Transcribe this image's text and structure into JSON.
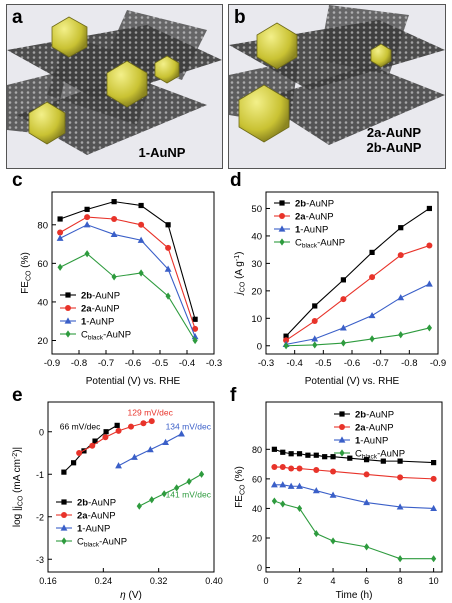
{
  "panels": {
    "a": {
      "letter": "a",
      "caption": "1-AuNP"
    },
    "b": {
      "letter": "b",
      "caption_line1": "2a-AuNP",
      "caption_line2": "2b-AuNP"
    }
  },
  "colors": {
    "black": "#000000",
    "red": "#e8332a",
    "blue": "#3a5fc8",
    "green": "#2e9b3e",
    "gold": "#d6d23a",
    "sheet": "#3a3a3a"
  },
  "chart_data": [
    {
      "panel": "c",
      "type": "line",
      "xlabel": "Potential (V) vs. RHE",
      "ylabel_main": "FE",
      "ylabel_sub": "CO",
      "ylabel_unit": " (%)",
      "x_ticks": [
        "-0.9",
        "-0.8",
        "-0.7",
        "-0.6",
        "-0.5",
        "-0.4",
        "-0.3"
      ],
      "y_ticks": [
        "20",
        "40",
        "60",
        "80"
      ],
      "xlim": [
        -0.9,
        -0.3
      ],
      "ylim": [
        13,
        97
      ],
      "x_reversed": false,
      "x": [
        -0.87,
        -0.77,
        -0.67,
        -0.57,
        -0.47,
        -0.37
      ],
      "legend_placement": "bottom-left",
      "series": [
        {
          "name_bold": "2b",
          "name_rest": "-AuNP",
          "color": "#000000",
          "marker": "square",
          "values": [
            83,
            88,
            92,
            90,
            80,
            31
          ]
        },
        {
          "name_bold": "2a",
          "name_rest": "-AuNP",
          "color": "#e8332a",
          "marker": "circle",
          "values": [
            76,
            84,
            83,
            80,
            68,
            26
          ]
        },
        {
          "name_bold": "1",
          "name_rest": "-AuNP",
          "color": "#3a5fc8",
          "marker": "triangle",
          "values": [
            73,
            80,
            75,
            72,
            57,
            22
          ]
        },
        {
          "name_bold": "",
          "name_main": "C",
          "name_sub": "black",
          "name_rest": "-AuNP",
          "color": "#2e9b3e",
          "marker": "diamond",
          "values": [
            58,
            65,
            53,
            55,
            43,
            20
          ]
        }
      ]
    },
    {
      "panel": "d",
      "type": "line",
      "xlabel": "Potential (V) vs. RHE",
      "ylabel_main": "j",
      "ylabel_sub": "CO",
      "ylabel_unit": " (A g",
      "ylabel_sup": "-1",
      "ylabel_end": ")",
      "x_ticks": [
        "-0.3",
        "-0.4",
        "-0.5",
        "-0.6",
        "-0.7",
        "-0.8",
        "-0.9"
      ],
      "y_ticks": [
        "0",
        "10",
        "20",
        "30",
        "40",
        "50"
      ],
      "xlim": [
        -0.3,
        -0.9
      ],
      "ylim": [
        -3,
        56
      ],
      "x_reversed": true,
      "x": [
        -0.37,
        -0.47,
        -0.57,
        -0.67,
        -0.77,
        -0.87
      ],
      "legend_placement": "top-left",
      "series": [
        {
          "name_bold": "2b",
          "name_rest": "-AuNP",
          "color": "#000000",
          "marker": "square",
          "values": [
            3.5,
            14.5,
            24,
            34,
            43,
            50
          ]
        },
        {
          "name_bold": "2a",
          "name_rest": "-AuNP",
          "color": "#e8332a",
          "marker": "circle",
          "values": [
            2,
            9,
            17,
            25,
            33,
            36.5
          ]
        },
        {
          "name_bold": "1",
          "name_rest": "-AuNP",
          "color": "#3a5fc8",
          "marker": "triangle",
          "values": [
            0.5,
            2.5,
            6.5,
            11,
            17.5,
            22.5
          ]
        },
        {
          "name_bold": "",
          "name_main": "C",
          "name_sub": "black",
          "name_rest": "-AuNP",
          "color": "#2e9b3e",
          "marker": "diamond",
          "values": [
            0,
            0.3,
            1,
            2.5,
            4,
            6.5
          ]
        }
      ]
    },
    {
      "panel": "e",
      "type": "line",
      "xlabel_main": "η",
      "xlabel_unit": " (V)",
      "ylabel_main": "log |j",
      "ylabel_sub": "CO",
      "ylabel_unit": " (mA cm",
      "ylabel_sup": "-2",
      "ylabel_end": ")|",
      "x_ticks": [
        "0.16",
        "0.24",
        "0.32",
        "0.40"
      ],
      "y_ticks": [
        "-3",
        "-2",
        "-1",
        "0"
      ],
      "xlim": [
        0.16,
        0.4
      ],
      "ylim": [
        -3.3,
        0.7
      ],
      "x_reversed": false,
      "legend_placement": "bottom-left",
      "annotations": [
        {
          "text": "66 mV/dec",
          "color": "#000000",
          "x": 0.177,
          "y": 0.05
        },
        {
          "text": "129 mV/dec",
          "color": "#e8332a",
          "x": 0.275,
          "y": 0.38
        },
        {
          "text": "134 mV/dec",
          "color": "#3a5fc8",
          "x": 0.33,
          "y": 0.05
        },
        {
          "text": "141 mV/dec",
          "color": "#2e9b3e",
          "x": 0.33,
          "y": -1.55
        }
      ],
      "series": [
        {
          "name_bold": "2b",
          "name_rest": "-AuNP",
          "color": "#000000",
          "marker": "square",
          "x": [
            0.183,
            0.197,
            0.212,
            0.228,
            0.244,
            0.26
          ],
          "values": [
            -0.95,
            -0.73,
            -0.45,
            -0.22,
            0.0,
            0.15
          ]
        },
        {
          "name_bold": "2a",
          "name_rest": "-AuNP",
          "color": "#e8332a",
          "marker": "circle",
          "x": [
            0.205,
            0.224,
            0.243,
            0.262,
            0.28,
            0.298,
            0.31
          ],
          "values": [
            -0.5,
            -0.33,
            -0.13,
            0.02,
            0.12,
            0.2,
            0.25
          ]
        },
        {
          "name_bold": "1",
          "name_rest": "-AuNP",
          "color": "#3a5fc8",
          "marker": "triangle",
          "x": [
            0.262,
            0.285,
            0.308,
            0.33,
            0.353
          ],
          "values": [
            -0.8,
            -0.6,
            -0.42,
            -0.25,
            -0.05
          ]
        },
        {
          "name_bold": "",
          "name_main": "C",
          "name_sub": "black",
          "name_rest": "-AuNP",
          "color": "#2e9b3e",
          "marker": "diamond",
          "x": [
            0.292,
            0.31,
            0.328,
            0.346,
            0.364,
            0.382
          ],
          "values": [
            -1.75,
            -1.6,
            -1.46,
            -1.32,
            -1.17,
            -1.0
          ]
        }
      ]
    },
    {
      "panel": "f",
      "type": "line",
      "xlabel": "Time (h)",
      "ylabel_main": "FE",
      "ylabel_sub": "CO",
      "ylabel_unit": " (%)",
      "x_ticks": [
        "0",
        "2",
        "4",
        "6",
        "8",
        "10"
      ],
      "y_ticks": [
        "0",
        "20",
        "40",
        "60",
        "80"
      ],
      "xlim": [
        0,
        10.5
      ],
      "ylim": [
        -3,
        112
      ],
      "x_reversed": false,
      "legend_placement": "top-right",
      "series": [
        {
          "name_bold": "2b",
          "name_rest": "-AuNP",
          "color": "#000000",
          "marker": "square",
          "x": [
            0.5,
            1,
            1.5,
            2,
            2.5,
            3,
            3.5,
            4,
            5,
            6,
            7,
            8,
            10
          ],
          "values": [
            80,
            78,
            77,
            77,
            76,
            76,
            75,
            75,
            74,
            73,
            72,
            72,
            71
          ]
        },
        {
          "name_bold": "2a",
          "name_rest": "-AuNP",
          "color": "#e8332a",
          "marker": "circle",
          "x": [
            0.5,
            1,
            1.5,
            2,
            3,
            4,
            6,
            8,
            10
          ],
          "values": [
            68,
            68,
            67,
            67,
            66,
            65,
            63,
            61,
            60
          ]
        },
        {
          "name_bold": "1",
          "name_rest": "-AuNP",
          "color": "#3a5fc8",
          "marker": "triangle",
          "x": [
            0.5,
            1,
            1.5,
            2,
            3,
            4,
            6,
            8,
            10
          ],
          "values": [
            56,
            56,
            55,
            55,
            52,
            49,
            44,
            41,
            40
          ]
        },
        {
          "name_bold": "",
          "name_main": "C",
          "name_sub": "black",
          "name_rest": "-AuNP",
          "color": "#2e9b3e",
          "marker": "diamond",
          "x": [
            0.5,
            1,
            2,
            3,
            4,
            6,
            8,
            10
          ],
          "values": [
            45,
            43,
            40,
            23,
            18,
            14,
            6,
            6
          ]
        }
      ]
    }
  ]
}
